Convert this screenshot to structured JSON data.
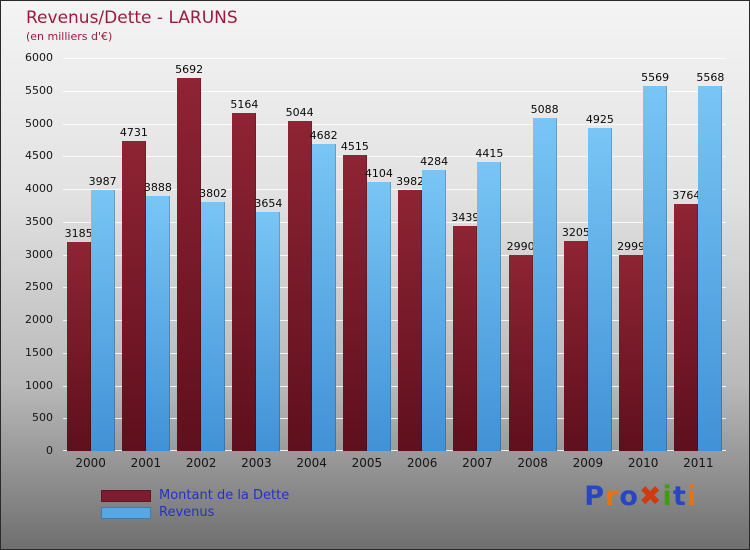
{
  "header": {
    "title": "Revenus/Dette - LARUNS",
    "subtitle": "(en milliers d'€)"
  },
  "chart_data": {
    "type": "bar",
    "title": "Revenus/Dette - LARUNS",
    "subtitle": "(en milliers d'€)",
    "categories": [
      "2000",
      "2001",
      "2002",
      "2003",
      "2004",
      "2005",
      "2006",
      "2007",
      "2008",
      "2009",
      "2010",
      "2011"
    ],
    "series": [
      {
        "name": "Montant de la Dette",
        "color": "#7d1c2e",
        "color_top": "#8e2434",
        "color_bottom": "#5f0f1d",
        "values": [
          3185,
          4731,
          5692,
          5164,
          5044,
          4515,
          3982,
          3439,
          2990,
          3205,
          2999,
          3764
        ]
      },
      {
        "name": "Revenus",
        "color": "#55a8e6",
        "color_top": "#79c5f5",
        "color_bottom": "#4191d6",
        "values": [
          3987,
          3888,
          3802,
          3654,
          4682,
          4104,
          4284,
          4415,
          5088,
          4925,
          5569,
          5568
        ]
      }
    ],
    "ylim": [
      0,
      6000
    ],
    "ytick_step": 500,
    "grid": true,
    "legend_position": "bottom-left"
  },
  "legend": {
    "items": [
      {
        "label": "Montant de la Dette",
        "color": "#7d1c2e"
      },
      {
        "label": "Revenus",
        "color": "#55a8e6"
      }
    ]
  },
  "logo": {
    "text": "Proxiti",
    "letters": [
      {
        "ch": "P",
        "color": "#2746c4"
      },
      {
        "ch": "r",
        "color": "#e8720c"
      },
      {
        "ch": "o",
        "color": "#2746c4"
      },
      {
        "ch": "✖",
        "color": "#d03a10"
      },
      {
        "ch": "i",
        "color": "#3f9e0f"
      },
      {
        "ch": "t",
        "color": "#2746c4"
      },
      {
        "ch": "i",
        "color": "#e8720c"
      }
    ]
  }
}
